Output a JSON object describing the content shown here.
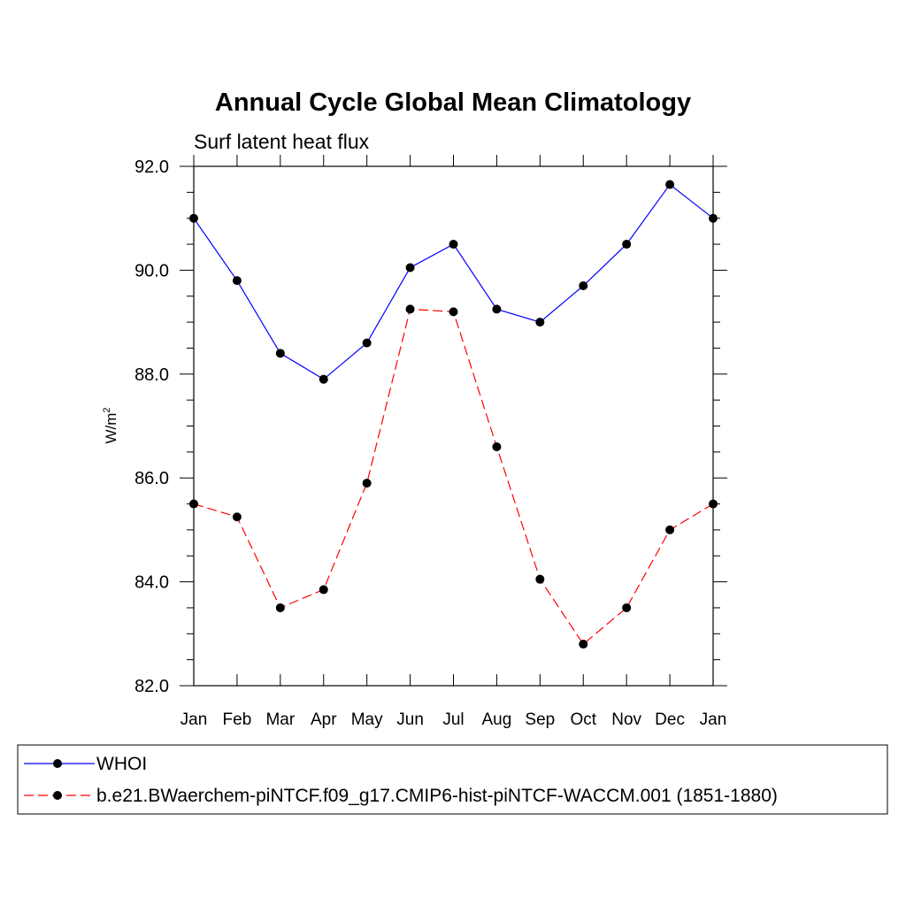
{
  "chart_data": {
    "type": "line",
    "title": "Annual Cycle Global Mean Climatology",
    "subtitle": "Surf latent heat flux",
    "xlabel": "",
    "ylabel": "W/m",
    "ylabel_superscript": "2",
    "categories": [
      "Jan",
      "Feb",
      "Mar",
      "Apr",
      "May",
      "Jun",
      "Jul",
      "Aug",
      "Sep",
      "Oct",
      "Nov",
      "Dec",
      "Jan"
    ],
    "ylim": [
      82.0,
      92.0
    ],
    "yticks": [
      "82.0",
      "84.0",
      "86.0",
      "88.0",
      "90.0",
      "92.0"
    ],
    "grid": false,
    "legend_position": "bottom",
    "series": [
      {
        "name": "WHOI",
        "color": "#0000ff",
        "line_style": "solid",
        "values": [
          91.0,
          89.8,
          88.4,
          87.9,
          88.6,
          90.05,
          90.5,
          89.25,
          89.0,
          89.7,
          90.5,
          91.65,
          91.0
        ]
      },
      {
        "name": "b.e21.BWaerchem-piNTCF.f09_g17.CMIP6-hist-piNTCF-WACCM.001 (1851-1880)",
        "color": "#ff0000",
        "line_style": "dashed",
        "values": [
          85.5,
          85.25,
          83.5,
          83.85,
          85.9,
          89.25,
          89.2,
          86.6,
          84.05,
          82.8,
          83.5,
          85.0,
          85.5
        ]
      }
    ]
  }
}
